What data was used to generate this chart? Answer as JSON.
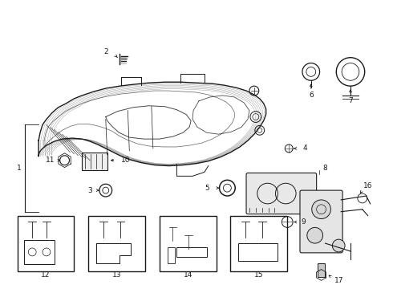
{
  "bg_color": "#ffffff",
  "line_color": "#1a1a1a",
  "label_fontsize": 6.5,
  "parts_labels": [
    "1",
    "2",
    "3",
    "4",
    "5",
    "6",
    "7",
    "8",
    "9",
    "10",
    "11",
    "12",
    "13",
    "14",
    "15",
    "16",
    "17"
  ]
}
